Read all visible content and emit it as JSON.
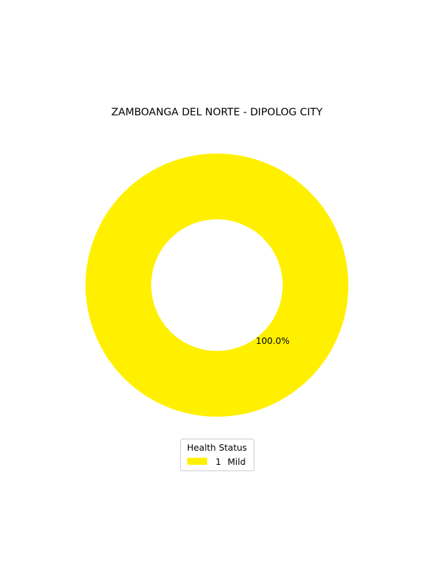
{
  "chart_data": {
    "type": "pie",
    "donut": true,
    "title": "ZAMBOANGA DEL NORTE - DIPOLOG CITY",
    "slices": [
      {
        "label": "Mild",
        "count": "1",
        "value": 1,
        "percent_label": "100.0%",
        "color": "#fff000"
      }
    ],
    "legend": {
      "title": "Health Status",
      "placement": "bottom-center"
    }
  }
}
